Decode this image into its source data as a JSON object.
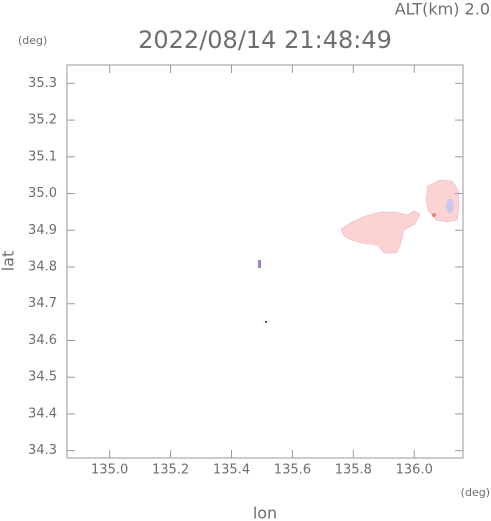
{
  "chart_data": {
    "type": "map",
    "title": "2022/08/14 21:48:49",
    "altitude_label": "ALT(km) 2.0",
    "x_unit": "(deg)",
    "y_unit": "(deg)",
    "xlabel": "lon",
    "ylabel": "lat",
    "xlim": [
      134.86,
      136.16
    ],
    "ylim": [
      34.28,
      35.35
    ],
    "xticks": [
      {
        "value": 135,
        "label": "135.0"
      },
      135.2,
      135.4,
      135.6,
      135.8,
      {
        "value": 136,
        "label": "136.0"
      }
    ],
    "yticks": [
      34.3,
      34.4,
      34.5,
      34.6,
      34.7,
      34.8,
      34.9,
      {
        "value": 35,
        "label": "35.0"
      },
      35.1,
      35.2,
      35.3
    ]
  }
}
